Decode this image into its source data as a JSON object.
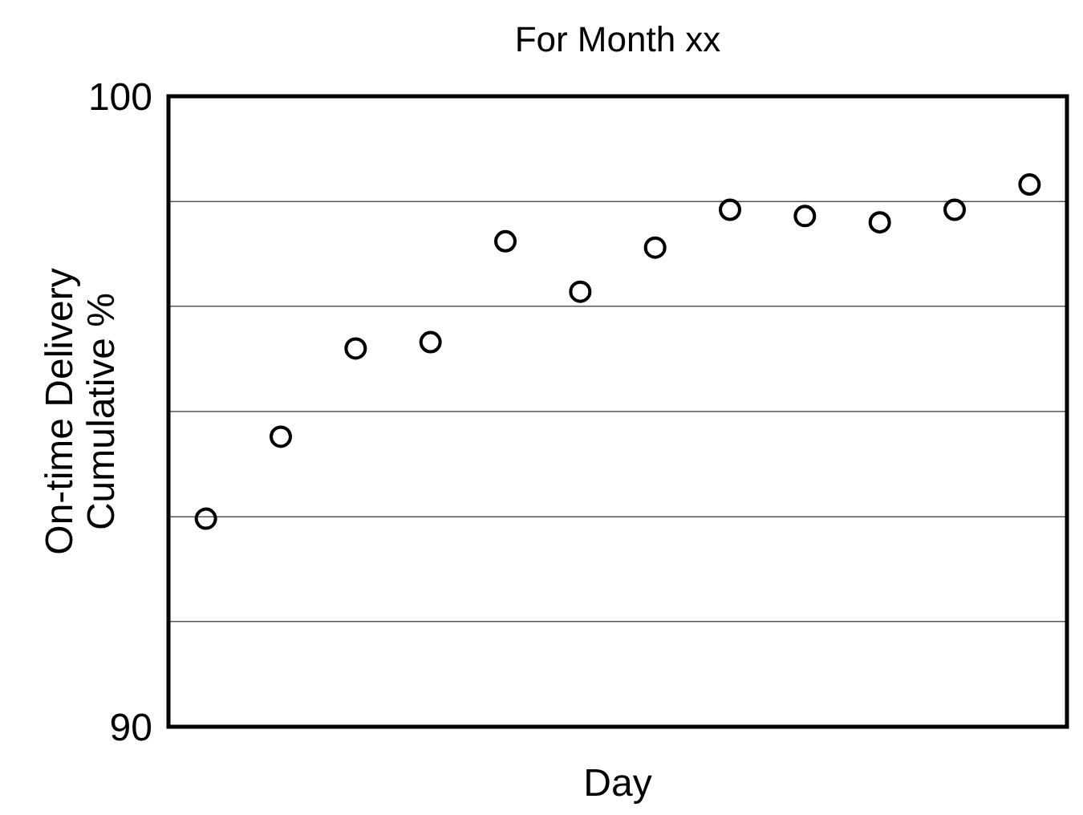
{
  "chart_data": {
    "type": "scatter",
    "title": "For Month xx",
    "xlabel": "Day",
    "ylabel": "On-time Delivery\nCumulative %",
    "categories": [
      null,
      null,
      null,
      null,
      null,
      null,
      null,
      null,
      null,
      null,
      null,
      null
    ],
    "values": [
      93.3,
      94.6,
      96.0,
      96.1,
      97.7,
      96.9,
      97.6,
      98.2,
      98.1,
      98.0,
      98.2,
      98.6
    ],
    "color": "#000000",
    "ylim": [
      90,
      100
    ],
    "yticks": [
      90,
      {
        "value": 91.67,
        "label": null
      },
      {
        "value": 93.33,
        "label": null
      },
      {
        "value": 95,
        "label": null
      },
      {
        "value": 96.67,
        "label": null
      },
      {
        "value": 98.33,
        "label": null
      },
      100
    ],
    "grid": "y",
    "tick_labels": "y",
    "marker": "circle"
  }
}
